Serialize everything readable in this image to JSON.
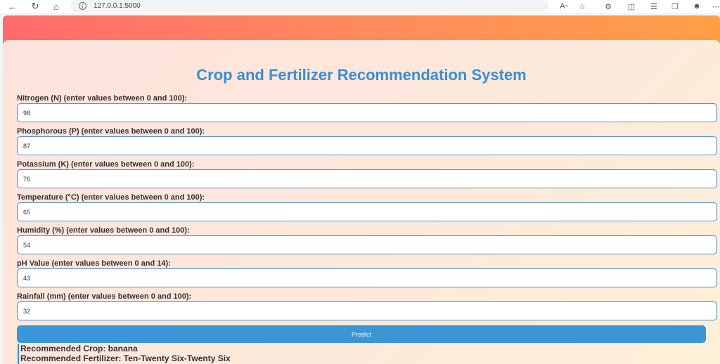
{
  "browser": {
    "url": "127.0.0.1:5000"
  },
  "page": {
    "title": "Crop and Fertilizer Recommendation System"
  },
  "form": {
    "fields": [
      {
        "label": "Nitrogen (N) (enter values between 0 and 100):",
        "value": "98"
      },
      {
        "label": "Phosphorous (P) (enter values between 0 and 100):",
        "value": "87"
      },
      {
        "label": "Potassium (K) (enter values between 0 and 100):",
        "value": "76"
      },
      {
        "label": "Temperature (°C) (enter values between 0 and 100):",
        "value": "65"
      },
      {
        "label": "Humidity (%) (enter values between 0 and 100):",
        "value": "54"
      },
      {
        "label": "pH Value (enter values between 0 and 14):",
        "value": "43"
      },
      {
        "label": "Rainfall (mm) (enter values between 0 and 100):",
        "value": "32"
      }
    ],
    "submit_label": "Predict"
  },
  "result": {
    "crop": "Recommended Crop: banana",
    "fertilizer": "Recommended Fertilizer: Ten-Twenty Six-Twenty Six"
  }
}
